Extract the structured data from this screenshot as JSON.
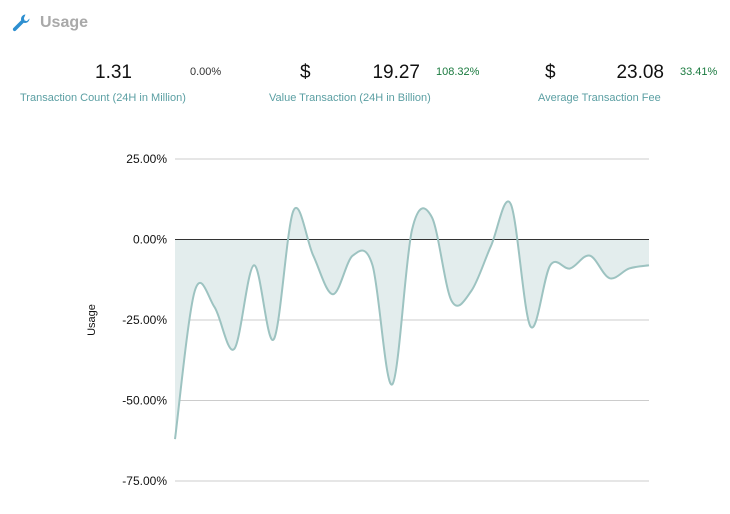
{
  "header": {
    "title": "Usage",
    "icon": "wrench-icon"
  },
  "stats": [
    {
      "value": "1.31",
      "change": "0.00%",
      "caption": "Transaction Count (24H in Million)"
    },
    {
      "currency": "$",
      "value": "19.27",
      "change": "108.32%",
      "caption": "Value Transaction (24H in Billion)"
    },
    {
      "currency": "$",
      "value": "23.08",
      "change": "33.41%",
      "caption": "Average Transaction Fee"
    }
  ],
  "colors": {
    "line": "#9dc3c1",
    "fill": "#e3eded",
    "positive": "#1a7a3f",
    "caption": "#5b9fa3",
    "title": "#a9a9a9"
  },
  "chart_data": {
    "type": "area",
    "ylabel": "Usage",
    "ylim": [
      -75,
      25
    ],
    "yticks": [
      "25.00%",
      "0.00%",
      "-25.00%",
      "-50.00%",
      "-75.00%"
    ],
    "ytick_values": [
      25,
      0,
      -25,
      -50,
      -75
    ],
    "grid": true,
    "values": [
      -62,
      -16,
      -21,
      -34,
      -8,
      -31,
      9,
      -5,
      -17,
      -5,
      -8,
      -45,
      3,
      7,
      -19,
      -16,
      -2,
      11,
      -27,
      -8,
      -9,
      -5,
      -12,
      -9,
      -8
    ]
  }
}
